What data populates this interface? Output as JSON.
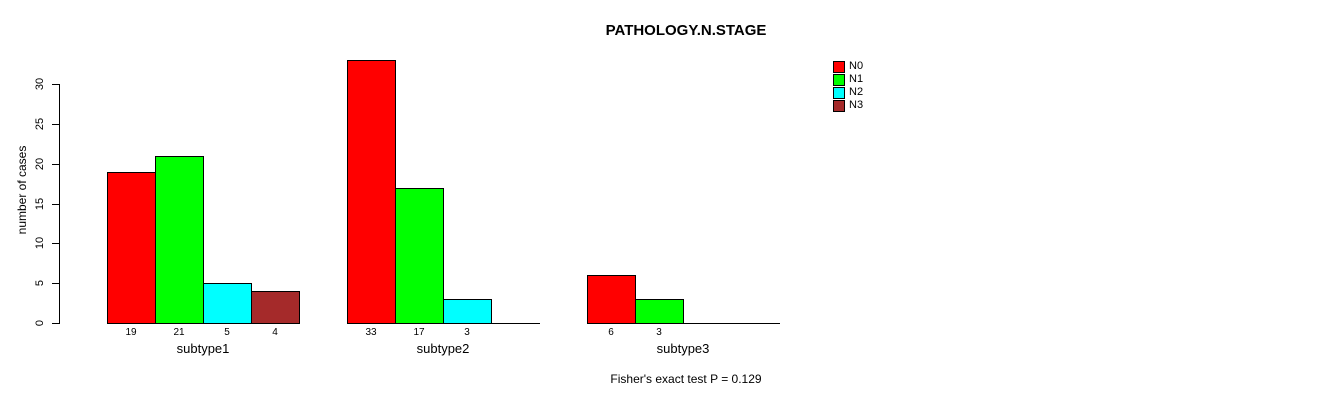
{
  "figure": {
    "title": "PATHOLOGY.N.STAGE",
    "annotation": "Fisher's exact test P = 0.129"
  },
  "chart_data": {
    "type": "bar",
    "title": "PATHOLOGY.N.STAGE",
    "xlabel": "",
    "ylabel": "number of cases",
    "ylim": [
      0,
      30
    ],
    "yticks": [
      0,
      5,
      10,
      15,
      20,
      25,
      30
    ],
    "categories": [
      "subtype1",
      "subtype2",
      "subtype3"
    ],
    "series": [
      {
        "name": "N0",
        "color": "#ff0000",
        "values": [
          19,
          33,
          6
        ]
      },
      {
        "name": "N1",
        "color": "#00ff00",
        "values": [
          21,
          17,
          3
        ]
      },
      {
        "name": "N2",
        "color": "#00ffff",
        "values": [
          5,
          3,
          0
        ]
      },
      {
        "name": "N3",
        "color": "#a52a2a",
        "values": [
          4,
          0,
          0
        ]
      }
    ],
    "bar_value_labels": {
      "subtype1": [
        19,
        21,
        5,
        4
      ],
      "subtype2": [
        33,
        17,
        3,
        null
      ],
      "subtype3": [
        6,
        3,
        null,
        null
      ]
    },
    "grid": false,
    "legend_position": "top-right",
    "annotation": "Fisher's exact test P = 0.129"
  }
}
